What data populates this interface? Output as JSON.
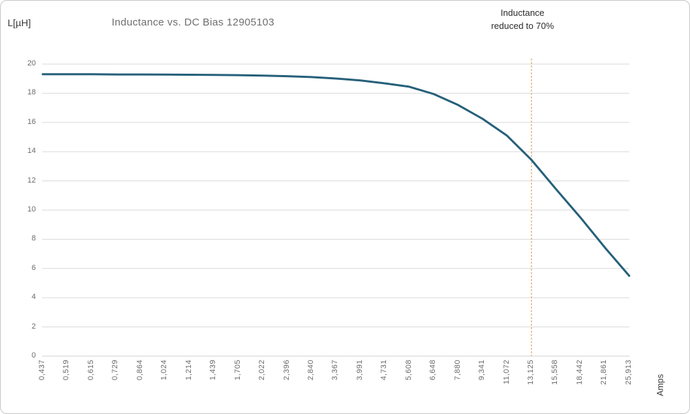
{
  "chart": {
    "y_unit_label": "L[µH]",
    "title": "Inductance vs. DC Bias 12905103",
    "annotation": {
      "line1": "Inductance",
      "line2": "reduced to 70%"
    },
    "x_axis_label": "Amps"
  },
  "chart_data": {
    "type": "line",
    "title": "Inductance vs. DC Bias 12905103",
    "xlabel": "Amps",
    "ylabel": "L[µH]",
    "categories": [
      "0,437",
      "0,519",
      "0,615",
      "0,729",
      "0,864",
      "1,024",
      "1,214",
      "1,439",
      "1,705",
      "2,022",
      "2,396",
      "2,840",
      "3,367",
      "3,991",
      "4,731",
      "5,608",
      "6,648",
      "7,880",
      "9,341",
      "11,072",
      "13,125",
      "15,558",
      "18,442",
      "21,861",
      "25,913"
    ],
    "series": [
      {
        "name": "L[µH]",
        "values": [
          19.3,
          19.3,
          19.3,
          19.29,
          19.29,
          19.28,
          19.27,
          19.26,
          19.24,
          19.21,
          19.17,
          19.11,
          19.01,
          18.88,
          18.68,
          18.45,
          17.95,
          17.2,
          16.25,
          15.1,
          13.44,
          11.45,
          9.5,
          7.45,
          5.5
        ]
      }
    ],
    "ylim": [
      0,
      20
    ],
    "y_ticks": [
      0,
      2,
      4,
      6,
      8,
      10,
      12,
      14,
      16,
      18,
      20
    ],
    "grid": true,
    "legend": "none",
    "annotation": {
      "text": "Inductance reduced to 70%",
      "at_category": "13,125",
      "category_index": 20,
      "style": "vertical-dashed-line"
    },
    "colors": {
      "line": "#26607a",
      "gridline": "#d9d9d9",
      "axis_line": "#d0d0d0",
      "dashed_line": "#dda768",
      "tick_label": "#6a6a6a",
      "title_text": "#6e6e6e",
      "dark_text": "#3a3a3a"
    }
  }
}
